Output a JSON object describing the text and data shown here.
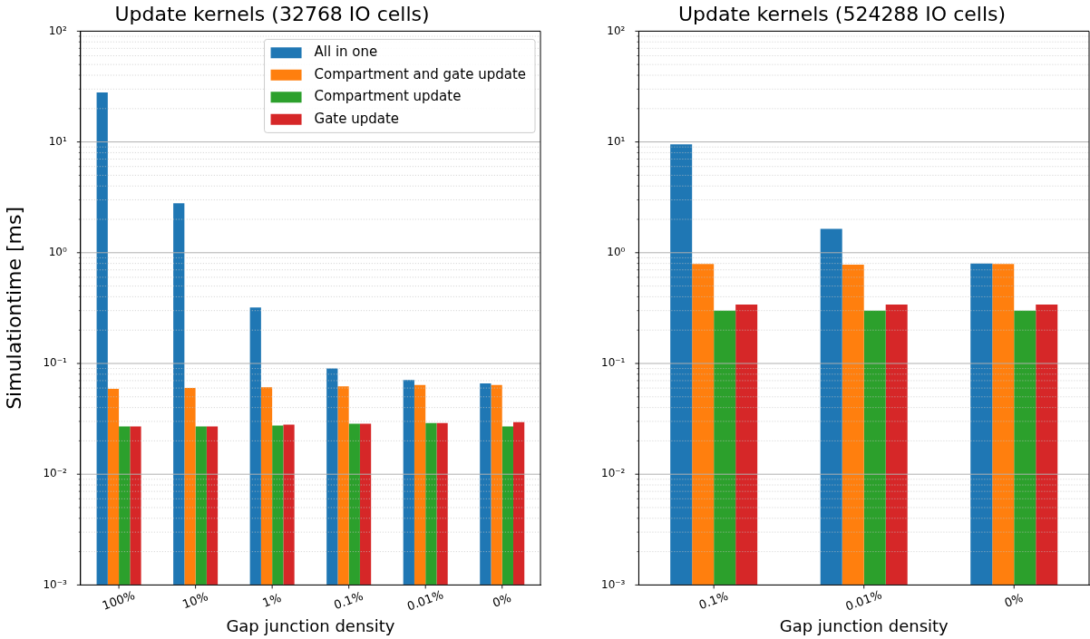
{
  "chart_data": [
    {
      "type": "bar",
      "title": "Update kernels (32768 IO cells)",
      "xlabel": "Gap junction density",
      "ylabel": "Simulationtime [ms]",
      "categories": [
        "100%",
        "10%",
        "1%",
        "0.1%",
        "0.01%",
        "0%"
      ],
      "series": [
        {
          "name": "All in one",
          "color": "#1f77b4",
          "values": [
            28,
            2.8,
            0.32,
            0.09,
            0.071,
            0.066
          ]
        },
        {
          "name": "Compartment and gate update",
          "color": "#ff7f0e",
          "values": [
            0.059,
            0.06,
            0.061,
            0.062,
            0.064,
            0.064
          ]
        },
        {
          "name": "Compartment update",
          "color": "#2ca02c",
          "values": [
            0.027,
            0.027,
            0.0275,
            0.0285,
            0.029,
            0.027
          ]
        },
        {
          "name": "Gate update",
          "color": "#d62728",
          "values": [
            0.027,
            0.027,
            0.028,
            0.0285,
            0.029,
            0.0295
          ]
        }
      ],
      "log": "y",
      "ylim": [
        0.001,
        100
      ],
      "yticks": [
        {
          "value": 0.001,
          "label": "10⁻³"
        },
        {
          "value": 0.002,
          "label": null
        },
        {
          "value": 0.003,
          "label": null
        },
        {
          "value": 0.004,
          "label": null
        },
        {
          "value": 0.005,
          "label": null
        },
        {
          "value": 0.006,
          "label": null
        },
        {
          "value": 0.007,
          "label": null
        },
        {
          "value": 0.008,
          "label": null
        },
        {
          "value": 0.009,
          "label": null
        },
        {
          "value": 0.01,
          "label": "10⁻²"
        },
        {
          "value": 0.02,
          "label": null
        },
        {
          "value": 0.03,
          "label": null
        },
        {
          "value": 0.04,
          "label": null
        },
        {
          "value": 0.05,
          "label": null
        },
        {
          "value": 0.06,
          "label": null
        },
        {
          "value": 0.07,
          "label": null
        },
        {
          "value": 0.08,
          "label": null
        },
        {
          "value": 0.09,
          "label": null
        },
        {
          "value": 0.1,
          "label": "10⁻¹"
        },
        {
          "value": 0.2,
          "label": null
        },
        {
          "value": 0.3,
          "label": null
        },
        {
          "value": 0.4,
          "label": null
        },
        {
          "value": 0.5,
          "label": null
        },
        {
          "value": 0.6,
          "label": null
        },
        {
          "value": 0.7,
          "label": null
        },
        {
          "value": 0.8,
          "label": null
        },
        {
          "value": 0.9,
          "label": null
        },
        {
          "value": 1,
          "label": "10⁰"
        },
        {
          "value": 2,
          "label": null
        },
        {
          "value": 3,
          "label": null
        },
        {
          "value": 4,
          "label": null
        },
        {
          "value": 5,
          "label": null
        },
        {
          "value": 6,
          "label": null
        },
        {
          "value": 7,
          "label": null
        },
        {
          "value": 8,
          "label": null
        },
        {
          "value": 9,
          "label": null
        },
        {
          "value": 10,
          "label": "10¹"
        },
        {
          "value": 20,
          "label": null
        },
        {
          "value": 30,
          "label": null
        },
        {
          "value": 40,
          "label": null
        },
        {
          "value": 50,
          "label": null
        },
        {
          "value": 60,
          "label": null
        },
        {
          "value": 70,
          "label": null
        },
        {
          "value": 80,
          "label": null
        },
        {
          "value": 90,
          "label": null
        },
        {
          "value": 100,
          "label": "10²"
        }
      ],
      "grid": "y",
      "legend": "top right"
    },
    {
      "type": "bar",
      "title": "Update kernels (524288 IO cells)",
      "xlabel": "Gap junction density",
      "categories": [
        "0.1%",
        "0.01%",
        "0%"
      ],
      "series": [
        {
          "color": "#1f77b4",
          "values": [
            9.5,
            1.64,
            0.8
          ]
        },
        {
          "color": "#ff7f0e",
          "values": [
            0.79,
            0.78,
            0.79
          ]
        },
        {
          "color": "#2ca02c",
          "values": [
            0.3,
            0.3,
            0.3
          ]
        },
        {
          "color": "#d62728",
          "values": [
            0.34,
            0.34,
            0.34
          ]
        }
      ],
      "log": "y",
      "ylim": [
        0.001,
        100
      ],
      "yticks": [
        {
          "value": 0.001,
          "label": "10⁻³"
        },
        {
          "value": 0.002,
          "label": null
        },
        {
          "value": 0.003,
          "label": null
        },
        {
          "value": 0.004,
          "label": null
        },
        {
          "value": 0.005,
          "label": null
        },
        {
          "value": 0.006,
          "label": null
        },
        {
          "value": 0.007,
          "label": null
        },
        {
          "value": 0.008,
          "label": null
        },
        {
          "value": 0.009,
          "label": null
        },
        {
          "value": 0.01,
          "label": "10⁻²"
        },
        {
          "value": 0.02,
          "label": null
        },
        {
          "value": 0.03,
          "label": null
        },
        {
          "value": 0.04,
          "label": null
        },
        {
          "value": 0.05,
          "label": null
        },
        {
          "value": 0.06,
          "label": null
        },
        {
          "value": 0.07,
          "label": null
        },
        {
          "value": 0.08,
          "label": null
        },
        {
          "value": 0.09,
          "label": null
        },
        {
          "value": 0.1,
          "label": "10⁻¹"
        },
        {
          "value": 0.2,
          "label": null
        },
        {
          "value": 0.3,
          "label": null
        },
        {
          "value": 0.4,
          "label": null
        },
        {
          "value": 0.5,
          "label": null
        },
        {
          "value": 0.6,
          "label": null
        },
        {
          "value": 0.7,
          "label": null
        },
        {
          "value": 0.8,
          "label": null
        },
        {
          "value": 0.9,
          "label": null
        },
        {
          "value": 1,
          "label": "10⁰"
        },
        {
          "value": 2,
          "label": null
        },
        {
          "value": 3,
          "label": null
        },
        {
          "value": 4,
          "label": null
        },
        {
          "value": 5,
          "label": null
        },
        {
          "value": 6,
          "label": null
        },
        {
          "value": 7,
          "label": null
        },
        {
          "value": 8,
          "label": null
        },
        {
          "value": 9,
          "label": null
        },
        {
          "value": 10,
          "label": "10¹"
        },
        {
          "value": 20,
          "label": null
        },
        {
          "value": 30,
          "label": null
        },
        {
          "value": 40,
          "label": null
        },
        {
          "value": 50,
          "label": null
        },
        {
          "value": 60,
          "label": null
        },
        {
          "value": 70,
          "label": null
        },
        {
          "value": 80,
          "label": null
        },
        {
          "value": 90,
          "label": null
        },
        {
          "value": 100,
          "label": "10²"
        }
      ],
      "grid": "y"
    }
  ]
}
